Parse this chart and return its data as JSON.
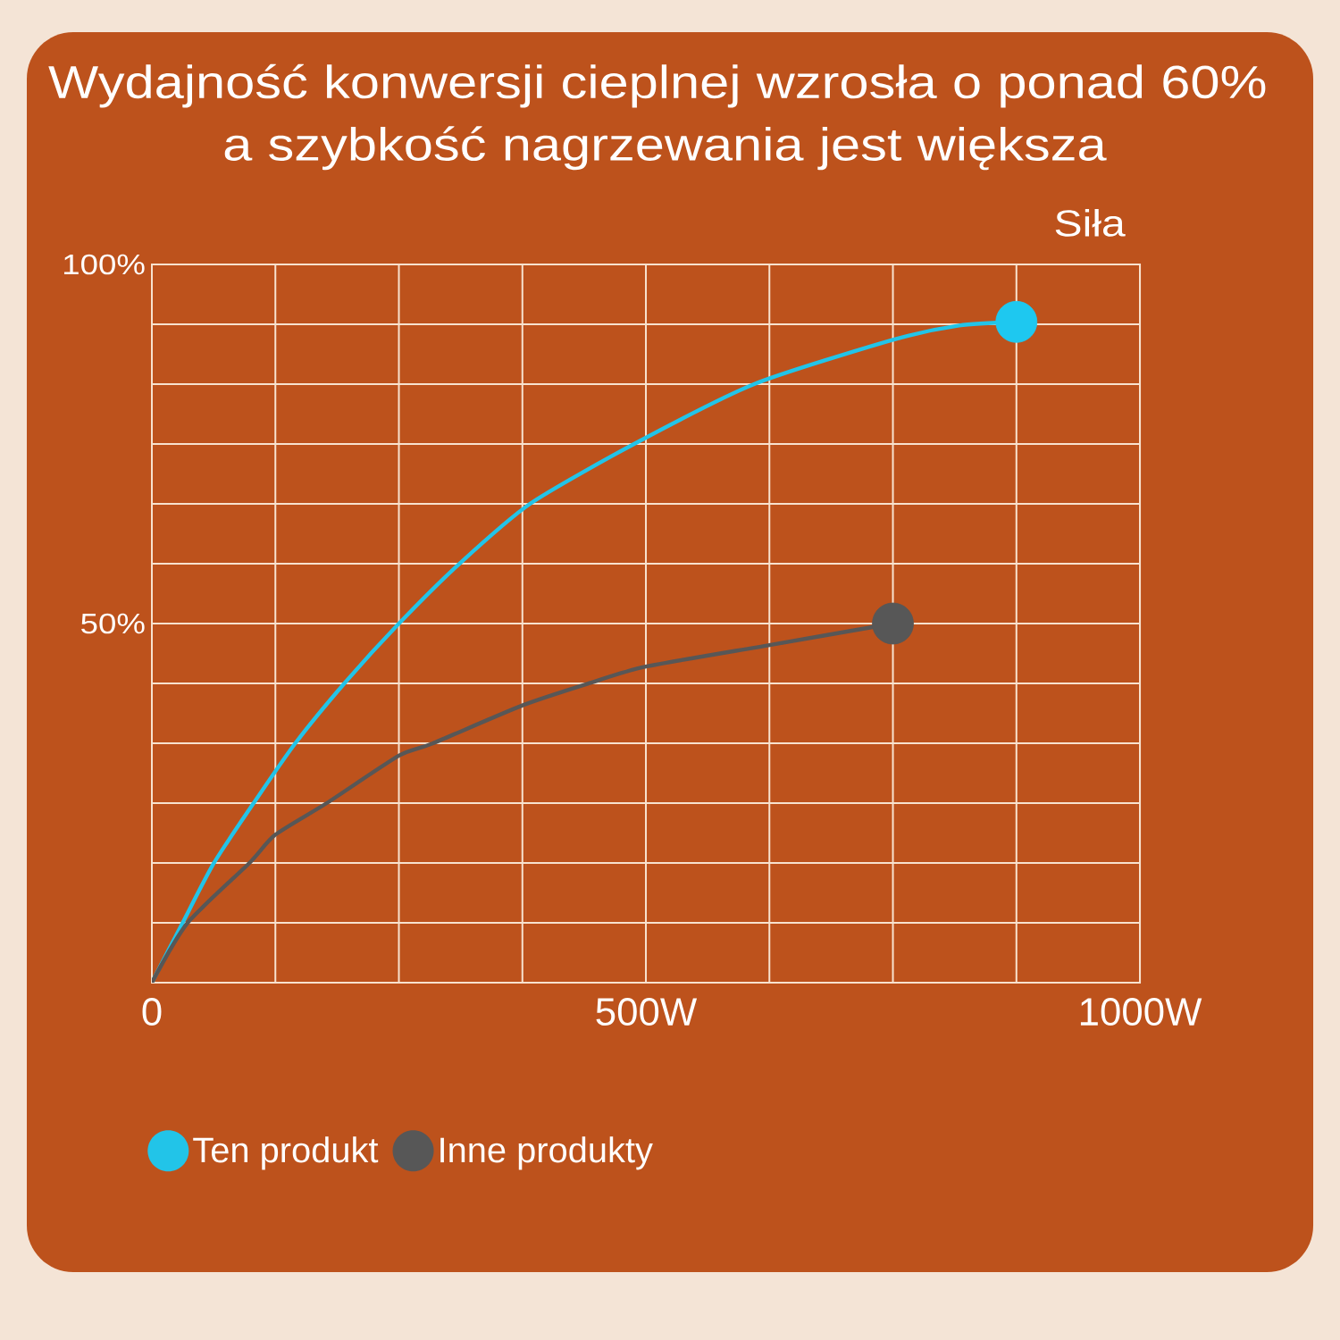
{
  "chart_data": {
    "type": "line",
    "title": "Wydajność konwersji cieplnej wzrosła o ponad 60% a szybkość nagrzewania jest większa",
    "xlabel": "Siła",
    "xlim": [
      0,
      1000
    ],
    "xticks": [
      0,
      {
        "value": 125,
        "label": null
      },
      {
        "value": 250,
        "label": null
      },
      {
        "value": 375,
        "label": null
      },
      {
        "value": 500,
        "label": "500W"
      },
      {
        "value": 625,
        "label": null
      },
      {
        "value": 750,
        "label": null
      },
      {
        "value": 875,
        "label": null
      },
      {
        "value": 1000,
        "label": "1000W"
      }
    ],
    "ylim": [
      0,
      100
    ],
    "yticks": [
      {
        "value": 0,
        "label": null
      },
      {
        "value": 8.33,
        "label": null
      },
      {
        "value": 16.67,
        "label": null
      },
      {
        "value": 25,
        "label": null
      },
      {
        "value": 33.33,
        "label": null
      },
      {
        "value": 41.67,
        "label": null
      },
      {
        "value": 50,
        "label": "50%"
      },
      {
        "value": 58.33,
        "label": null
      },
      {
        "value": 66.67,
        "label": null
      },
      {
        "value": 75,
        "label": null
      },
      {
        "value": 83.33,
        "label": null
      },
      {
        "value": 91.67,
        "label": null
      },
      {
        "value": 100,
        "label": "100%"
      }
    ],
    "grid": true,
    "legend": "bottom left",
    "line_style": "solid",
    "series": [
      {
        "name": "Ten produkt",
        "color": "#22c4e8",
        "x": [
          0,
          31,
          63,
          103,
          145,
          195,
          250,
          311,
          383,
          488,
          609,
          750,
          817,
          875
        ],
        "values": [
          0,
          8.3,
          16.7,
          25,
          33.3,
          41.7,
          50,
          58.3,
          66.7,
          75,
          83.3,
          89.5,
          91.5,
          92
        ]
      },
      {
        "name": "Inne produkty",
        "color": "#575757",
        "x": [
          0,
          36,
          99,
          125,
          177,
          250,
          284,
          375,
          443,
          500,
          625,
          750
        ],
        "values": [
          0,
          8.3,
          16.7,
          20.6,
          25,
          31.6,
          33.3,
          38.6,
          41.7,
          44,
          47,
          50
        ]
      },
      {
        "type": "scatter",
        "color": "#1ec8f0",
        "x": [
          875
        ],
        "values": [
          92
        ]
      },
      {
        "type": "scatter",
        "color": "#575757",
        "x": [
          750
        ],
        "values": [
          50
        ]
      }
    ]
  }
}
